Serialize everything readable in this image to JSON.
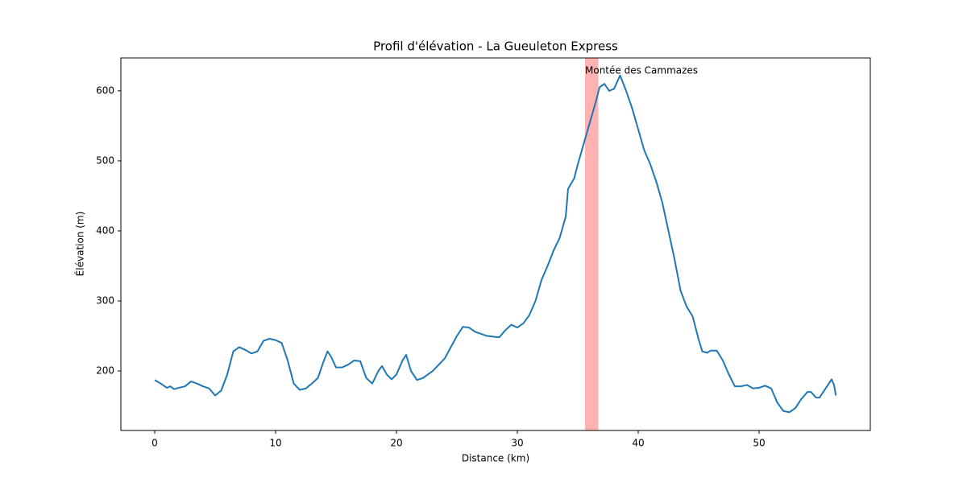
{
  "chart_data": {
    "type": "line",
    "title": "Profil d'élévation - La Gueuleton Express",
    "xlabel": "Distance (km)",
    "ylabel": "Élévation (m)",
    "x": [
      0,
      0.5,
      1,
      1.3,
      1.6,
      2,
      2.5,
      3,
      3.5,
      4,
      4.5,
      5,
      5.5,
      6,
      6.5,
      7,
      7.5,
      8,
      8.5,
      9,
      9.5,
      10,
      10.5,
      11,
      11.5,
      12,
      12.5,
      13,
      13.5,
      14,
      14.3,
      14.6,
      15,
      15.5,
      16,
      16.5,
      17,
      17.5,
      18,
      18.5,
      18.8,
      19.2,
      19.6,
      20,
      20.5,
      20.8,
      21.2,
      21.7,
      22.2,
      23,
      24,
      25,
      25.5,
      26,
      26.5,
      27,
      27.5,
      28.5,
      29,
      29.5,
      30,
      30.5,
      31,
      31.5,
      32,
      32.5,
      33,
      33.5,
      34,
      34.2,
      34.7,
      35,
      35.5,
      36,
      36.5,
      36.8,
      37.2,
      37.6,
      38,
      38.5,
      39,
      39.5,
      40,
      40.5,
      41,
      41.5,
      42,
      42.5,
      43,
      43.5,
      44,
      44.5,
      45,
      45.3,
      45.7,
      46,
      46.5,
      47,
      47.5,
      48,
      48.5,
      49,
      49.5,
      50,
      50.5,
      51,
      51.5,
      52,
      52.5,
      53,
      53.5,
      54,
      54.3,
      54.7,
      55,
      55.5,
      56,
      56.2,
      56.35
    ],
    "series": [
      {
        "name": "Élévation",
        "color": "#1f77b4",
        "values": [
          187,
          182,
          176,
          178,
          174,
          176,
          178,
          185,
          182,
          178,
          175,
          165,
          172,
          195,
          228,
          234,
          230,
          225,
          228,
          243,
          246,
          244,
          240,
          215,
          182,
          173,
          175,
          182,
          190,
          215,
          228,
          220,
          205,
          205,
          209,
          215,
          214,
          190,
          182,
          200,
          207,
          195,
          188,
          195,
          215,
          223,
          200,
          187,
          190,
          200,
          218,
          250,
          263,
          262,
          256,
          253,
          250,
          248,
          258,
          266,
          262,
          268,
          280,
          300,
          330,
          350,
          372,
          390,
          420,
          460,
          475,
          495,
          525,
          555,
          585,
          605,
          610,
          600,
          603,
          622,
          600,
          575,
          545,
          515,
          495,
          470,
          440,
          400,
          360,
          315,
          292,
          278,
          245,
          228,
          226,
          229,
          229,
          215,
          195,
          178,
          178,
          180,
          175,
          176,
          179,
          175,
          155,
          143,
          141,
          147,
          160,
          170,
          170,
          162,
          162,
          175,
          188,
          180,
          165
        ]
      }
    ],
    "highlight": {
      "range": [
        35.6,
        36.7
      ],
      "color": "#ff0000",
      "label": "Montée des Cammazes"
    },
    "xlim": [
      -2.8,
      59.2
    ],
    "ylim": [
      115,
      647
    ],
    "xticks": [
      0,
      10,
      20,
      30,
      40,
      50
    ],
    "yticks": [
      200,
      300,
      400,
      500,
      600
    ]
  }
}
